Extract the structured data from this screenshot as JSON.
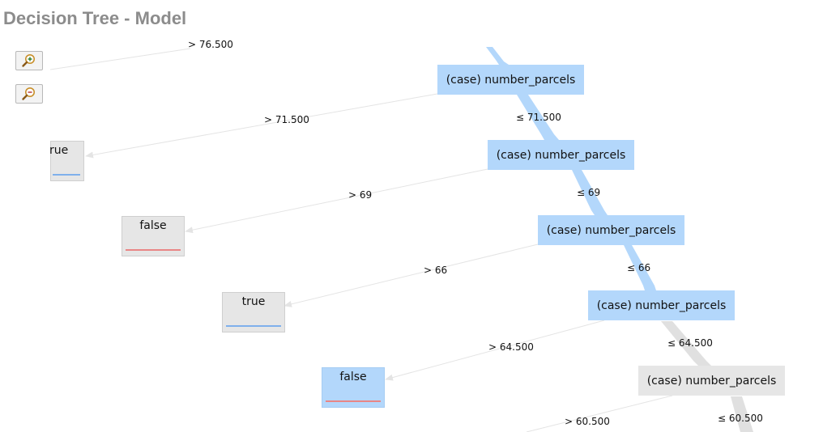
{
  "title": "Decision Tree - Model",
  "colors": {
    "node_blue": "#b3d7fb",
    "node_grey": "#e6e6e6",
    "flow_blue": "#b3d7fb",
    "flow_grey": "#e0e0e0",
    "true_bar": "#7fb0ec",
    "false_bar": "#e98686",
    "edge_line": "#e4e4e4"
  },
  "zoom": {
    "zoom_in_icon": "zoom-in-magnifier",
    "zoom_out_icon": "zoom-out-magnifier"
  },
  "nodes": {
    "n1": "(case) number_parcels",
    "n2": "(case) number_parcels",
    "n3": "(case) number_parcels",
    "n4": "(case) number_parcels",
    "n5": "(case) number_parcels"
  },
  "leaves": {
    "l0": "rue",
    "l1": "false",
    "l2": "true",
    "l3": "false"
  },
  "edges": {
    "e0": "> 76.500",
    "e1_right": "> 71.500",
    "e1_down": "≤ 71.500",
    "e2_right": "> 69",
    "e2_down": "≤ 69",
    "e3_right": "> 66",
    "e3_down": "≤ 66",
    "e4_right": "> 64.500",
    "e4_down": "≤ 64.500",
    "e5_right": "> 60.500",
    "e5_down": "≤ 60.500"
  }
}
